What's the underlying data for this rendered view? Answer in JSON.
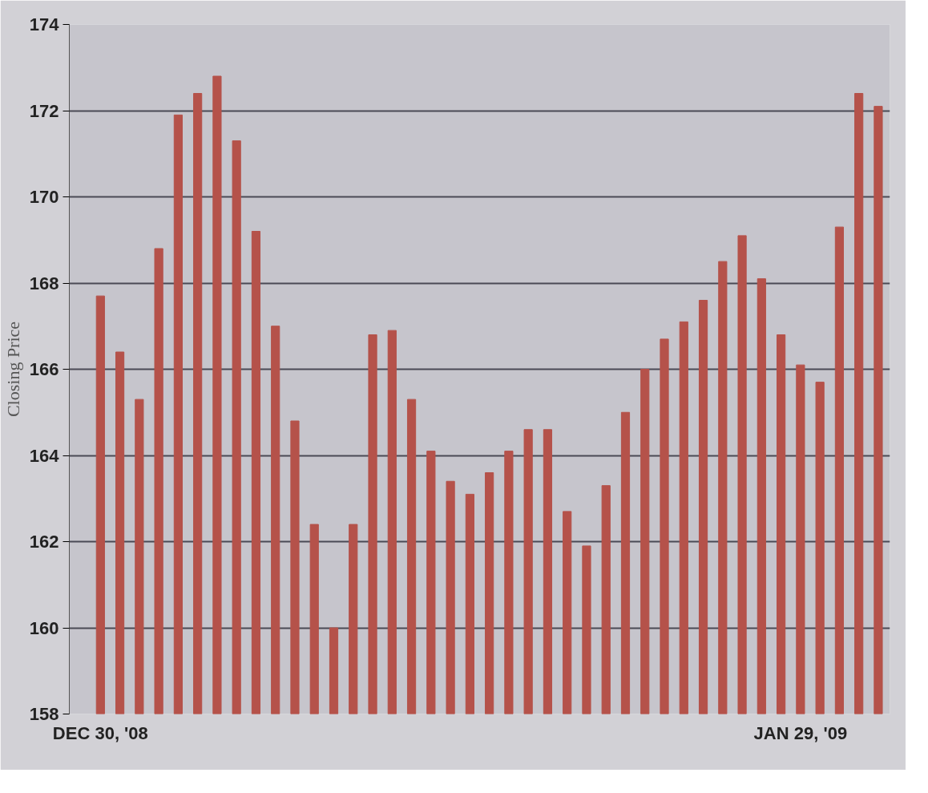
{
  "chart_data": {
    "type": "bar",
    "ylabel": "Closing Price",
    "categories": [
      "DEC 30, '08",
      null,
      null,
      null,
      null,
      null,
      null,
      null,
      null,
      null,
      null,
      null,
      null,
      null,
      null,
      null,
      null,
      null,
      null,
      null,
      null,
      null,
      null,
      null,
      null,
      null,
      null,
      null,
      null,
      null,
      null,
      null,
      null,
      null,
      null,
      null,
      "JAN 29, '09",
      null,
      null,
      null,
      null
    ],
    "values": [
      167.7,
      166.4,
      165.3,
      168.8,
      171.9,
      172.4,
      172.8,
      171.3,
      169.2,
      167.0,
      164.8,
      162.4,
      160.0,
      162.4,
      166.8,
      166.9,
      165.3,
      164.1,
      163.4,
      163.1,
      163.6,
      164.1,
      164.6,
      164.6,
      162.7,
      161.9,
      163.3,
      165.0,
      166.0,
      166.7,
      167.1,
      167.6,
      168.5,
      169.1,
      168.1,
      166.8,
      166.1,
      165.7,
      169.3,
      172.4,
      172.1
    ],
    "color": "#b5524a",
    "ylim": [
      158,
      174
    ],
    "yticks": [
      158,
      160,
      162,
      164,
      166,
      168,
      170,
      172,
      174
    ],
    "grid": "y"
  }
}
